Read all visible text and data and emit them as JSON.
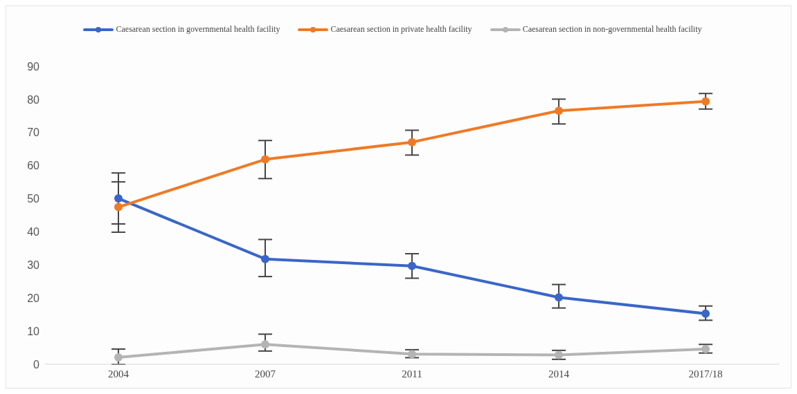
{
  "chart_data": {
    "type": "line",
    "categories": [
      "2004",
      "2007",
      "2011",
      "2014",
      "2017/18"
    ],
    "series": [
      {
        "name": "Caesarean section in governmental health facility",
        "color": "#3a66c8",
        "values": [
          50.1,
          31.8,
          29.7,
          20.2,
          15.3
        ],
        "errors": [
          [
            42.4,
            57.8
          ],
          [
            26.5,
            37.7
          ],
          [
            26.0,
            33.4
          ],
          [
            17.0,
            24.1
          ],
          [
            13.3,
            17.6
          ]
        ]
      },
      {
        "name": "Caesarean section in private health facility",
        "color": "#ef7a25",
        "values": [
          47.5,
          61.9,
          67.1,
          76.6,
          79.4
        ],
        "errors": [
          [
            39.9,
            55.1
          ],
          [
            56.1,
            67.6
          ],
          [
            63.2,
            70.7
          ],
          [
            72.6,
            80.1
          ],
          [
            77.1,
            81.8
          ]
        ]
      },
      {
        "name": "Caesarean section in non-governmental health facility",
        "color": "#b4b4b4",
        "values": [
          2.1,
          6.0,
          3.1,
          2.8,
          4.6
        ],
        "errors": [
          [
            0,
            4.6
          ],
          [
            4.0,
            9.1
          ],
          [
            2.0,
            4.4
          ],
          [
            1.5,
            4.2
          ],
          [
            3.4,
            6.0
          ]
        ]
      }
    ],
    "ylim": [
      0,
      90
    ],
    "yticks": [
      0,
      10,
      20,
      30,
      40,
      50,
      60,
      70,
      80,
      90
    ],
    "grid": false,
    "legend": "top",
    "marker": "circle",
    "line_style": "solid"
  }
}
